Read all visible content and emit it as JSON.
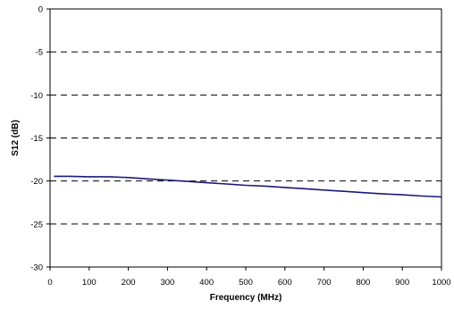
{
  "chart_data": {
    "type": "line",
    "title": "",
    "xlabel": "Frequency (MHz)",
    "ylabel": "S12  (dB)",
    "xlim": [
      0,
      1000
    ],
    "ylim": [
      -30,
      0
    ],
    "x_ticks": [
      0,
      100,
      200,
      300,
      400,
      500,
      600,
      700,
      800,
      900,
      1000
    ],
    "y_ticks": [
      0,
      -5,
      -10,
      -15,
      -20,
      -25,
      -30
    ],
    "grid": "dashed horizontal",
    "legend": "none",
    "colors": {
      "line": "#1a1a7a",
      "grid": "#000000"
    },
    "series": [
      {
        "x": [
          10,
          50,
          100,
          150,
          200,
          250,
          300,
          350,
          400,
          450,
          500,
          550,
          600,
          650,
          700,
          750,
          800,
          850,
          900,
          950,
          1000
        ],
        "y": [
          -19.45,
          -19.45,
          -19.5,
          -19.5,
          -19.6,
          -19.75,
          -19.9,
          -20.05,
          -20.2,
          -20.35,
          -20.5,
          -20.6,
          -20.75,
          -20.9,
          -21.05,
          -21.2,
          -21.35,
          -21.5,
          -21.6,
          -21.75,
          -21.85
        ]
      }
    ]
  }
}
